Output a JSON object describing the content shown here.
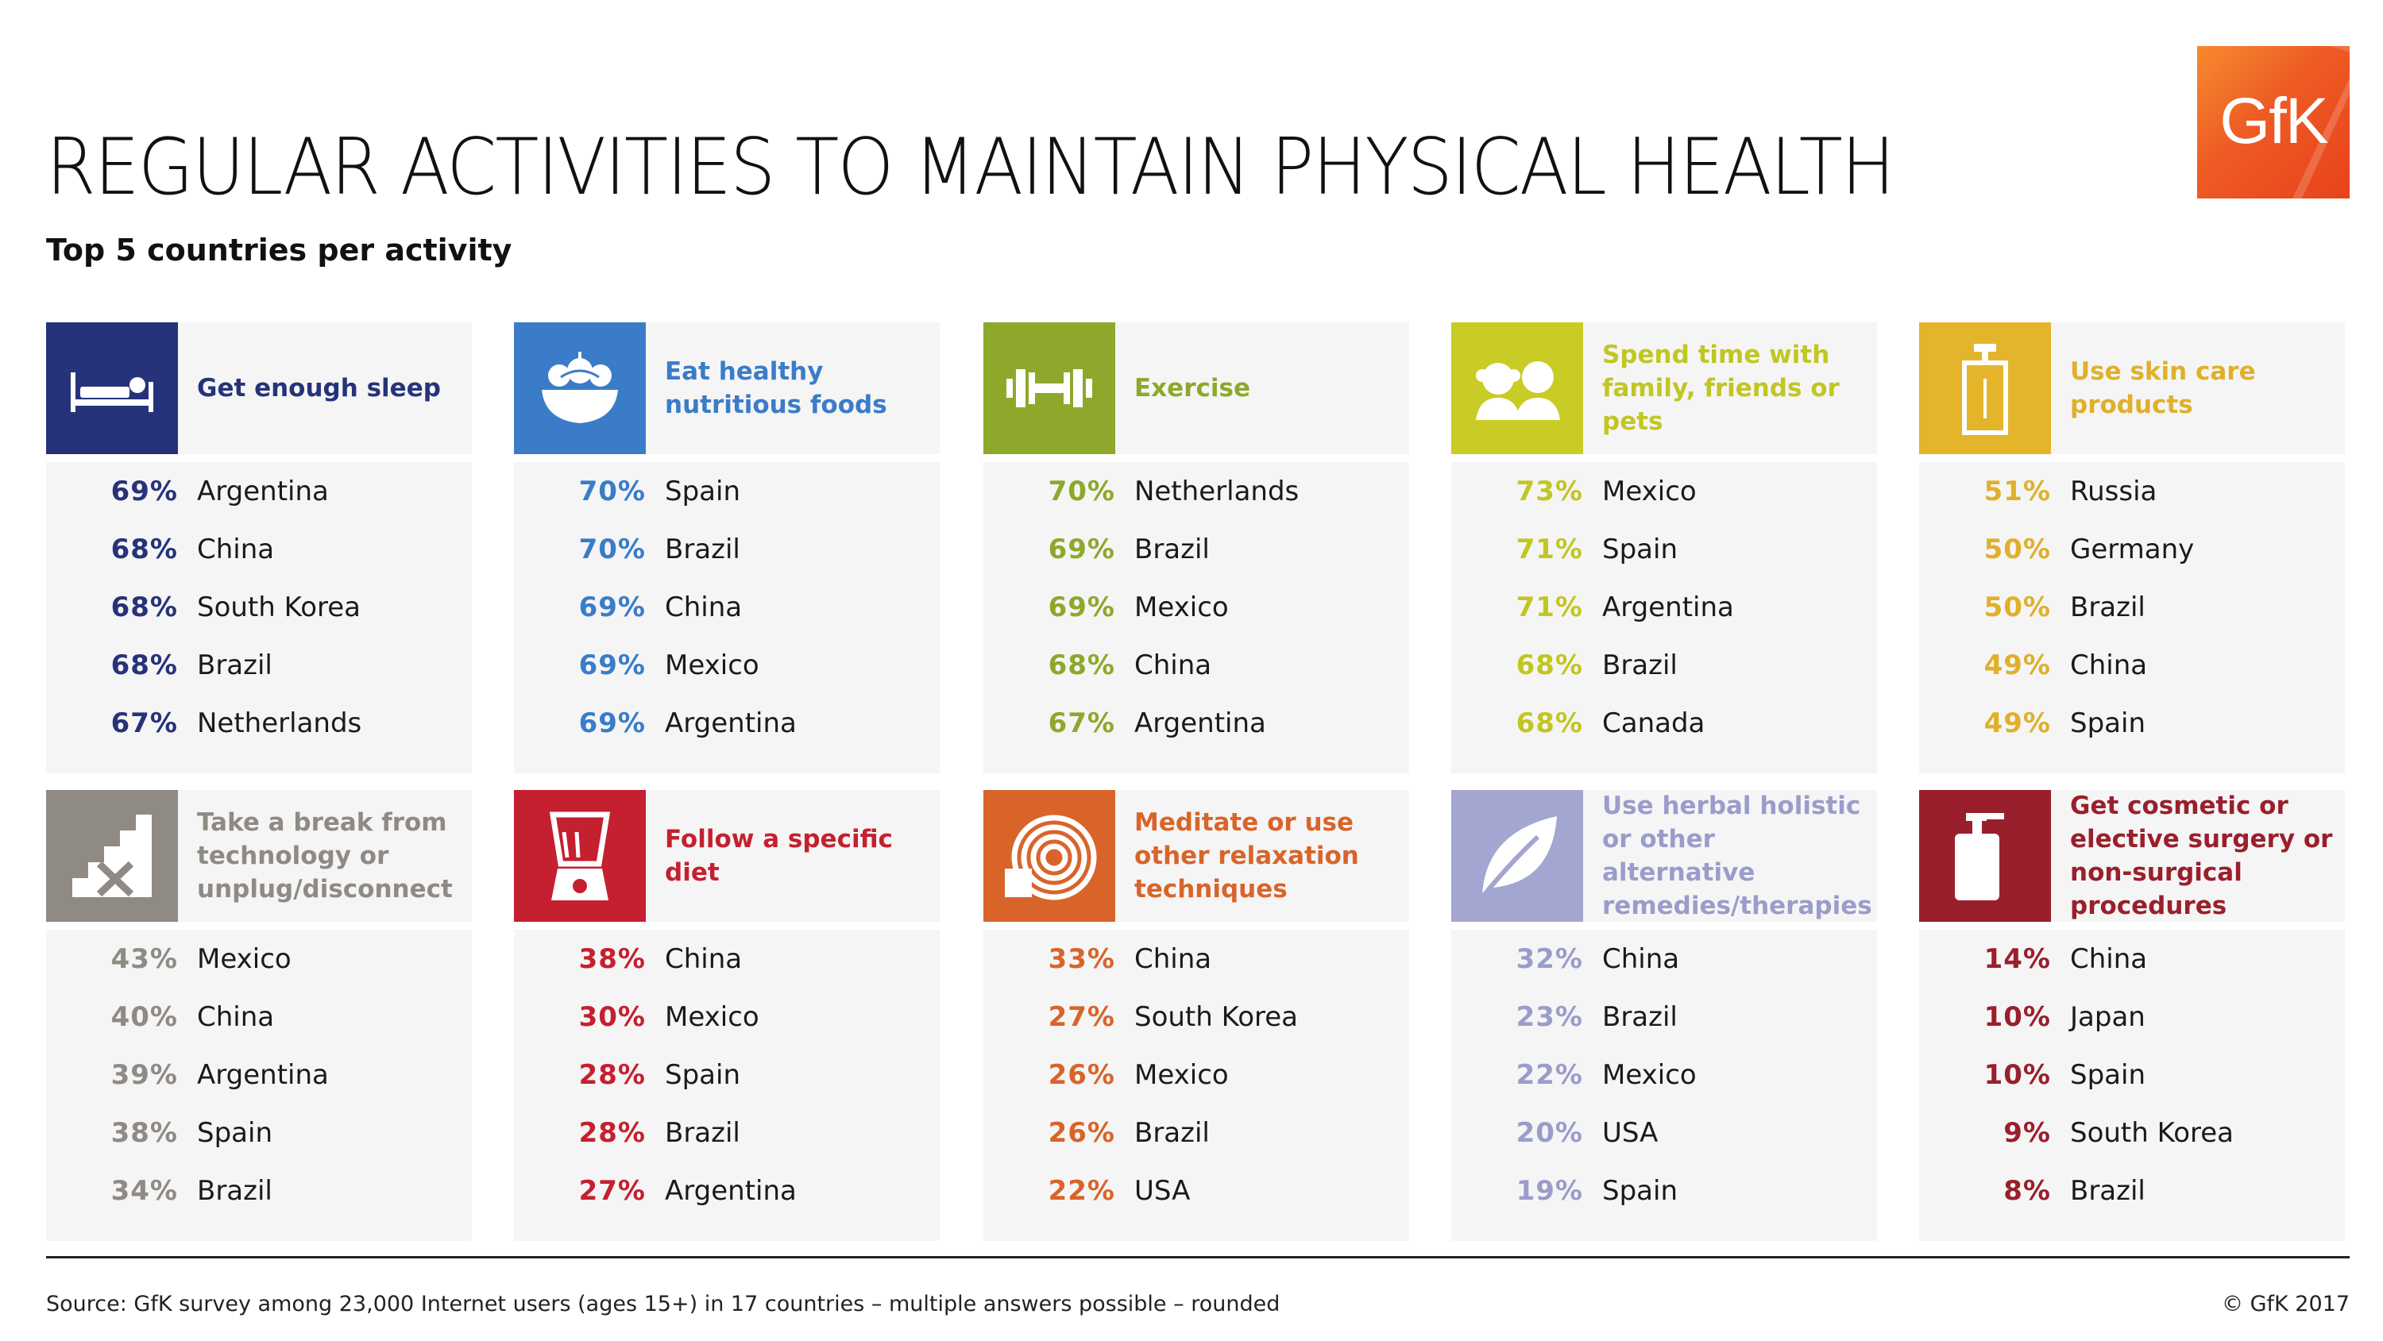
{
  "title": "REGULAR ACTIVITIES TO MAINTAIN PHYSICAL HEALTH",
  "subtitle": "Top 5 countries per activity",
  "logo": "GfK",
  "source": "Source: GfK survey among 23,000 Internet users (ages 15+) in 17 countries – multiple answers possible – rounded",
  "copyright": "© GfK 2017",
  "chart_data": {
    "type": "table",
    "title": "REGULAR ACTIVITIES TO MAINTAIN PHYSICAL HEALTH",
    "subtitle": "Top 5 countries per activity",
    "activities": [
      {
        "label": "Get enough sleep",
        "icon": "bed-icon",
        "color": "#26337a",
        "text_color": "#26337a",
        "rows": [
          {
            "pct": "69%",
            "value": 69,
            "country": "Argentina"
          },
          {
            "pct": "68%",
            "value": 68,
            "country": "China"
          },
          {
            "pct": "68%",
            "value": 68,
            "country": "South Korea"
          },
          {
            "pct": "68%",
            "value": 68,
            "country": "Brazil"
          },
          {
            "pct": "67%",
            "value": 67,
            "country": "Netherlands"
          }
        ]
      },
      {
        "label": "Eat healthy nutritious foods",
        "icon": "food-bowl-icon",
        "color": "#3a7cc8",
        "text_color": "#3a7cc8",
        "rows": [
          {
            "pct": "70%",
            "value": 70,
            "country": "Spain"
          },
          {
            "pct": "70%",
            "value": 70,
            "country": "Brazil"
          },
          {
            "pct": "69%",
            "value": 69,
            "country": "China"
          },
          {
            "pct": "69%",
            "value": 69,
            "country": "Mexico"
          },
          {
            "pct": "69%",
            "value": 69,
            "country": "Argentina"
          }
        ]
      },
      {
        "label": "Exercise",
        "icon": "dumbbell-icon",
        "color": "#8ea82c",
        "text_color": "#8ea82c",
        "rows": [
          {
            "pct": "70%",
            "value": 70,
            "country": "Netherlands"
          },
          {
            "pct": "69%",
            "value": 69,
            "country": "Brazil"
          },
          {
            "pct": "69%",
            "value": 69,
            "country": "Mexico"
          },
          {
            "pct": "68%",
            "value": 68,
            "country": "China"
          },
          {
            "pct": "67%",
            "value": 67,
            "country": "Argentina"
          }
        ]
      },
      {
        "label": "Spend time with family, friends or pets",
        "icon": "people-icon",
        "color": "#c8cc24",
        "text_color": "#c2c622",
        "rows": [
          {
            "pct": "73%",
            "value": 73,
            "country": "Mexico"
          },
          {
            "pct": "71%",
            "value": 71,
            "country": "Spain"
          },
          {
            "pct": "71%",
            "value": 71,
            "country": "Argentina"
          },
          {
            "pct": "68%",
            "value": 68,
            "country": "Brazil"
          },
          {
            "pct": "68%",
            "value": 68,
            "country": "Canada"
          }
        ]
      },
      {
        "label": "Use skin care products",
        "icon": "lotion-bottle-icon",
        "color": "#e4b52a",
        "text_color": "#e0b02a",
        "rows": [
          {
            "pct": "51%",
            "value": 51,
            "country": "Russia"
          },
          {
            "pct": "50%",
            "value": 50,
            "country": "Germany"
          },
          {
            "pct": "50%",
            "value": 50,
            "country": "Brazil"
          },
          {
            "pct": "49%",
            "value": 49,
            "country": "China"
          },
          {
            "pct": "49%",
            "value": 49,
            "country": "Spain"
          }
        ]
      },
      {
        "label": "Take a break from technology or unplug/disconnect",
        "icon": "unplug-stairs-icon",
        "color": "#8f8a84",
        "text_color": "#8f8a84",
        "rows": [
          {
            "pct": "43%",
            "value": 43,
            "country": "Mexico"
          },
          {
            "pct": "40%",
            "value": 40,
            "country": "China"
          },
          {
            "pct": "39%",
            "value": 39,
            "country": "Argentina"
          },
          {
            "pct": "38%",
            "value": 38,
            "country": "Spain"
          },
          {
            "pct": "34%",
            "value": 34,
            "country": "Brazil"
          }
        ]
      },
      {
        "label": "Follow a specific diet",
        "icon": "blender-icon",
        "color": "#c4202f",
        "text_color": "#c4202f",
        "rows": [
          {
            "pct": "38%",
            "value": 38,
            "country": "China"
          },
          {
            "pct": "30%",
            "value": 30,
            "country": "Mexico"
          },
          {
            "pct": "28%",
            "value": 28,
            "country": "Spain"
          },
          {
            "pct": "28%",
            "value": 28,
            "country": "Brazil"
          },
          {
            "pct": "27%",
            "value": 27,
            "country": "Argentina"
          }
        ]
      },
      {
        "label": "Meditate or use other relaxation techniques",
        "icon": "spiral-mat-icon",
        "color": "#d9642a",
        "text_color": "#d9642a",
        "rows": [
          {
            "pct": "33%",
            "value": 33,
            "country": "China"
          },
          {
            "pct": "27%",
            "value": 27,
            "country": "South Korea"
          },
          {
            "pct": "26%",
            "value": 26,
            "country": "Mexico"
          },
          {
            "pct": "26%",
            "value": 26,
            "country": "Brazil"
          },
          {
            "pct": "22%",
            "value": 22,
            "country": "USA"
          }
        ]
      },
      {
        "label": "Use herbal holistic or other alternative remedies/therapies",
        "icon": "leaf-icon",
        "color": "#a3a6d0",
        "text_color": "#9a9dca",
        "rows": [
          {
            "pct": "32%",
            "value": 32,
            "country": "China"
          },
          {
            "pct": "23%",
            "value": 23,
            "country": "Brazil"
          },
          {
            "pct": "22%",
            "value": 22,
            "country": "Mexico"
          },
          {
            "pct": "20%",
            "value": 20,
            "country": "USA"
          },
          {
            "pct": "19%",
            "value": 19,
            "country": "Spain"
          }
        ]
      },
      {
        "label": "Get cosmetic or elective surgery or non-surgical procedures",
        "icon": "pump-bottle-icon",
        "color": "#9a1f2c",
        "text_color": "#9a1f2c",
        "rows": [
          {
            "pct": "14%",
            "value": 14,
            "country": "China"
          },
          {
            "pct": "10%",
            "value": 10,
            "country": "Japan"
          },
          {
            "pct": "10%",
            "value": 10,
            "country": "Spain"
          },
          {
            "pct": "9%",
            "value": 9,
            "country": "South Korea"
          },
          {
            "pct": "8%",
            "value": 8,
            "country": "Brazil"
          }
        ]
      }
    ]
  }
}
